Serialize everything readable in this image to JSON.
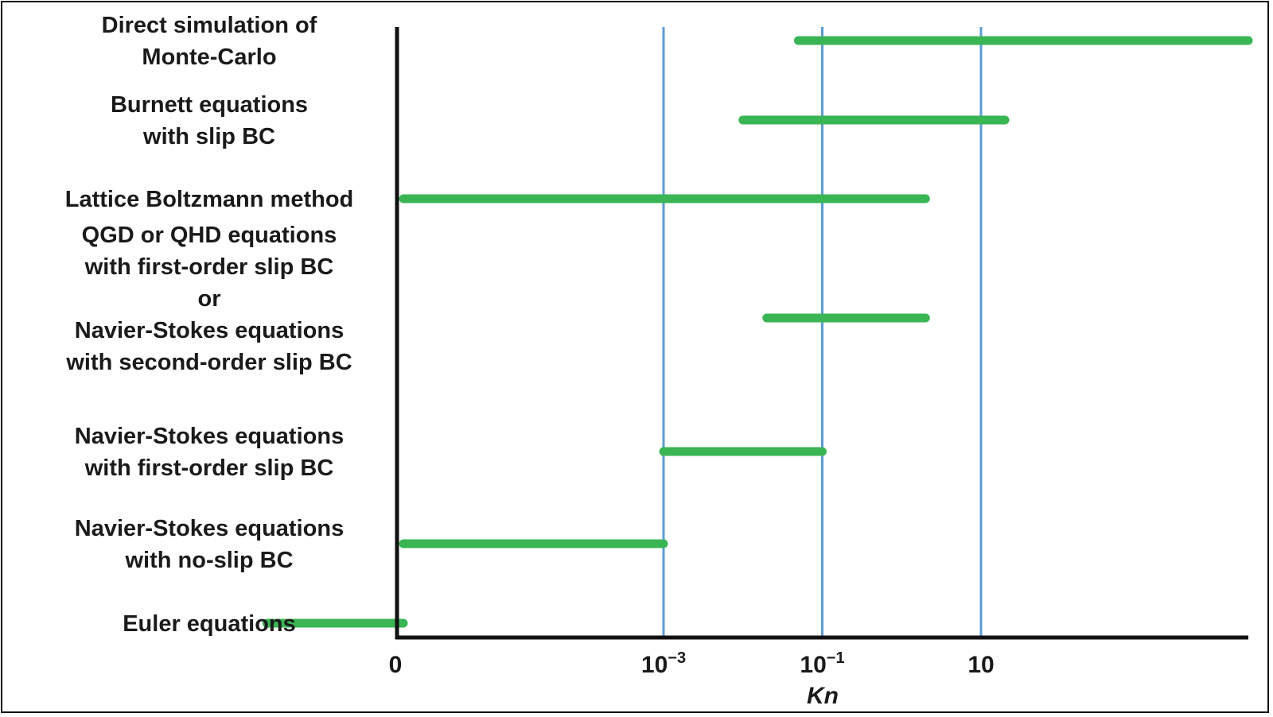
{
  "chart_data": {
    "type": "bar",
    "orientation": "horizontal-range",
    "xlabel": "Kn",
    "x_ticks": [
      {
        "value": 0,
        "label": "0"
      },
      {
        "value": 0.001,
        "label": "10",
        "exponent": "−3"
      },
      {
        "value": 0.1,
        "label": "10",
        "exponent": "−1"
      },
      {
        "value": 10,
        "label": "10"
      }
    ],
    "x_scale": "log",
    "x_gridlines": [
      0.001,
      0.1,
      10
    ],
    "grid": true,
    "legend": "none",
    "colors": {
      "bar": "#3ab554",
      "gridline": "#5b9bd5",
      "axis": "#111111"
    },
    "categories": [
      {
        "lines": [
          "Direct simulation of",
          "Monte-Carlo"
        ]
      },
      {
        "lines": [
          "Burnett equations",
          "with slip BC"
        ]
      },
      {
        "lines": [
          "Lattice Boltzmann method"
        ]
      },
      {
        "lines": [
          "QGD or QHD equations",
          "with first-order slip BC",
          "or",
          "Navier-Stokes equations",
          "with second-order slip BC"
        ]
      },
      {
        "lines": [
          "Navier-Stokes equations",
          "with first-order slip BC"
        ]
      },
      {
        "lines": [
          "Navier-Stokes equations",
          "with no-slip BC"
        ]
      },
      {
        "lines": [
          "Euler equations"
        ]
      }
    ],
    "ranges": [
      {
        "start": 0.05,
        "end": 10000000
      },
      {
        "start": 0.01,
        "end": 20
      },
      {
        "start": 2e-08,
        "end": 2
      },
      {
        "start": 0.02,
        "end": 2
      },
      {
        "start": 0.001,
        "end": 0.1
      },
      {
        "start": 1e-07,
        "end": 0.001
      },
      {
        "start": 0,
        "end": 1e-08
      }
    ]
  }
}
